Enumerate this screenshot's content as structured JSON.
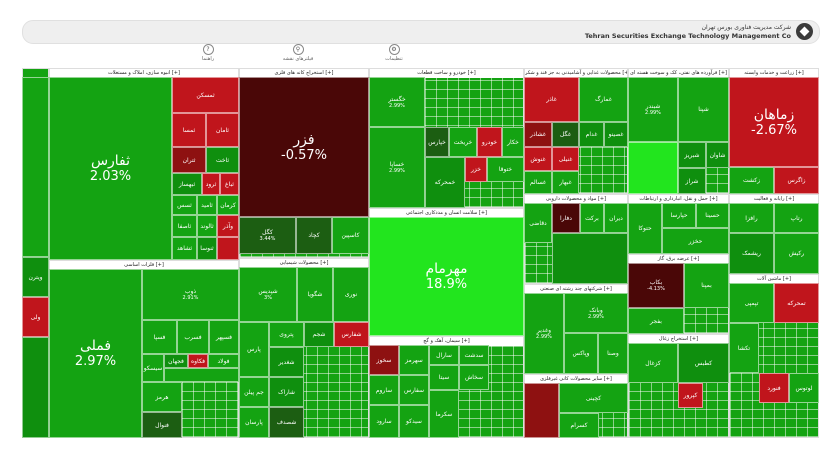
{
  "header": {
    "brand_fa": "شرکت مدیریت فناوری بورس تهران",
    "brand_en": "Tehran Securities Exchange Technology Management Co",
    "tools": [
      {
        "label": "راهنما",
        "icon": "help-icon",
        "glyph": "?"
      },
      {
        "label": "فیلترهای نقشه",
        "icon": "filter-icon",
        "glyph": "⚲"
      },
      {
        "label": "تنظیمات",
        "icon": "gear-icon",
        "glyph": "⚙"
      }
    ]
  },
  "colors": {
    "g_bright": "#22e51e",
    "g": "#14a312",
    "g_mid": "#0f8f0e",
    "g_dark": "#1c5e12",
    "r": "#c0151c",
    "r_dark": "#4a0707",
    "r_mid": "#8e1111"
  },
  "sectors": [
    {
      "name": "",
      "l": 0,
      "t": 0,
      "w": 27,
      "h": 370
    },
    {
      "name": "انبوه سازی، املاک و مستغلات [+]",
      "l": 27,
      "t": 0,
      "w": 190,
      "h": 192
    },
    {
      "name": "فلزات اساسی [+]",
      "l": 27,
      "t": 192,
      "w": 190,
      "h": 178
    },
    {
      "name": "استخراج کانه های فلزی [+]",
      "l": 217,
      "t": 0,
      "w": 130,
      "h": 190
    },
    {
      "name": "محصولات شیمیایی [+]",
      "l": 217,
      "t": 190,
      "w": 130,
      "h": 180
    },
    {
      "name": "خودرو و ساخت قطعات [+]",
      "l": 347,
      "t": 0,
      "w": 155,
      "h": 140
    },
    {
      "name": "سلامت انسان و مددکاری اجتماعی [+]",
      "l": 347,
      "t": 140,
      "w": 155,
      "h": 128
    },
    {
      "name": "سیمان، آهک و گچ [+]",
      "l": 347,
      "t": 268,
      "w": 155,
      "h": 102
    },
    {
      "name": "محصولات غذایی و آشامیدنی به جز قند و شکر [+]",
      "l": 502,
      "t": 0,
      "w": 104,
      "h": 126
    },
    {
      "name": "مواد و محصولات دارویی [+]",
      "l": 502,
      "t": 126,
      "w": 104,
      "h": 90
    },
    {
      "name": "شرکتهای چند رشته ای صنعتی [+]",
      "l": 502,
      "t": 216,
      "w": 104,
      "h": 90
    },
    {
      "name": "سایر محصولات کانی غیرفلزی [+]",
      "l": 502,
      "t": 306,
      "w": 104,
      "h": 64
    },
    {
      "name": "فرآورده های نفتی، کک و سوخت هسته ای [+]",
      "l": 606,
      "t": 0,
      "w": 101,
      "h": 126
    },
    {
      "name": "حمل و نقل، انبارداری و ارتباطات [+]",
      "l": 606,
      "t": 126,
      "w": 101,
      "h": 60
    },
    {
      "name": "عرضه برق، گاز [+]",
      "l": 606,
      "t": 186,
      "w": 101,
      "h": 80
    },
    {
      "name": "استخراج زغال [+]",
      "l": 606,
      "t": 266,
      "w": 101,
      "h": 104
    },
    {
      "name": "زراعت و خدمات وابسته [+]",
      "l": 707,
      "t": 0,
      "w": 90,
      "h": 126
    },
    {
      "name": "رایانه و فعالیت [+]",
      "l": 707,
      "t": 126,
      "w": 90,
      "h": 80
    },
    {
      "name": "ماشین آلات [+]",
      "l": 707,
      "t": 206,
      "w": 90,
      "h": 164
    }
  ],
  "tiles": [
    {
      "nm": "",
      "pc": "",
      "c": "g",
      "l": 0,
      "t": 9,
      "w": 27,
      "h": 180
    },
    {
      "nm": "ویترن",
      "pc": "",
      "c": "g_mid",
      "l": 0,
      "t": 189,
      "w": 27,
      "h": 40
    },
    {
      "nm": "ولی",
      "pc": "",
      "c": "r",
      "l": 0,
      "t": 229,
      "w": 27,
      "h": 40
    },
    {
      "nm": "",
      "pc": "",
      "c": "g_mid",
      "l": 0,
      "t": 269,
      "w": 27,
      "h": 101
    },
    {
      "nm": "ثفارس",
      "pc": "2.03%",
      "c": "g",
      "l": 27,
      "t": 9,
      "w": 123,
      "h": 183,
      "big": true
    },
    {
      "nm": "ثمسکن",
      "pc": "",
      "c": "r",
      "l": 150,
      "t": 9,
      "w": 67,
      "h": 36
    },
    {
      "nm": "ثمسا",
      "pc": "",
      "c": "r",
      "l": 150,
      "t": 45,
      "w": 34,
      "h": 34
    },
    {
      "nm": "ثامان",
      "pc": "",
      "c": "r",
      "l": 184,
      "t": 45,
      "w": 33,
      "h": 34
    },
    {
      "nm": "ثتران",
      "pc": "",
      "c": "r_mid",
      "l": 150,
      "t": 79,
      "w": 34,
      "h": 26
    },
    {
      "nm": "ثاخت",
      "pc": "",
      "c": "g_mid",
      "l": 184,
      "t": 79,
      "w": 33,
      "h": 26
    },
    {
      "nm": "ثبهساز",
      "pc": "",
      "c": "g_mid",
      "l": 150,
      "t": 105,
      "w": 30,
      "h": 22
    },
    {
      "nm": "ثرود",
      "pc": "",
      "c": "r",
      "l": 180,
      "t": 105,
      "w": 18,
      "h": 22
    },
    {
      "nm": "ثباغ",
      "pc": "",
      "c": "r",
      "l": 198,
      "t": 105,
      "w": 19,
      "h": 22
    },
    {
      "nm": "ثسس",
      "pc": "",
      "c": "g",
      "l": 150,
      "t": 127,
      "w": 25,
      "h": 20
    },
    {
      "nm": "ثامید",
      "pc": "",
      "c": "g",
      "l": 175,
      "t": 127,
      "w": 20,
      "h": 20
    },
    {
      "nm": "کرمان",
      "pc": "",
      "c": "g",
      "l": 195,
      "t": 127,
      "w": 22,
      "h": 20
    },
    {
      "nm": "ثاصفا",
      "pc": "",
      "c": "g",
      "l": 150,
      "t": 147,
      "w": 25,
      "h": 22
    },
    {
      "nm": "ثالوند",
      "pc": "",
      "c": "g",
      "l": 175,
      "t": 147,
      "w": 20,
      "h": 22
    },
    {
      "nm": "وآذر",
      "pc": "",
      "c": "r",
      "l": 195,
      "t": 147,
      "w": 22,
      "h": 22
    },
    {
      "nm": "ثشاهد",
      "pc": "",
      "c": "g",
      "l": 150,
      "t": 169,
      "w": 25,
      "h": 23
    },
    {
      "nm": "ثنوسا",
      "pc": "",
      "c": "g_mid",
      "l": 175,
      "t": 169,
      "w": 20,
      "h": 23
    },
    {
      "nm": "",
      "pc": "",
      "c": "r",
      "l": 195,
      "t": 169,
      "w": 22,
      "h": 23
    },
    {
      "nm": "فملی",
      "pc": "2.97%",
      "c": "g",
      "l": 27,
      "t": 201,
      "w": 93,
      "h": 169,
      "big": true
    },
    {
      "nm": "ذوب",
      "pc": "2.91%",
      "c": "g",
      "l": 120,
      "t": 201,
      "w": 97,
      "h": 51
    },
    {
      "nm": "فسپا",
      "pc": "",
      "c": "g",
      "l": 120,
      "t": 252,
      "w": 35,
      "h": 34
    },
    {
      "nm": "فسرب",
      "pc": "",
      "c": "g",
      "l": 155,
      "t": 252,
      "w": 32,
      "h": 34
    },
    {
      "nm": "فسپهر",
      "pc": "",
      "c": "g",
      "l": 187,
      "t": 252,
      "w": 30,
      "h": 34
    },
    {
      "nm": "سیسکو",
      "pc": "",
      "c": "g",
      "l": 120,
      "t": 286,
      "w": 22,
      "h": 28
    },
    {
      "nm": "فجهان",
      "pc": "",
      "c": "g_mid",
      "l": 142,
      "t": 286,
      "w": 24,
      "h": 14
    },
    {
      "nm": "فکاوه",
      "pc": "",
      "c": "r",
      "l": 166,
      "t": 286,
      "w": 20,
      "h": 14
    },
    {
      "nm": "فولاد",
      "pc": "",
      "c": "g",
      "l": 186,
      "t": 286,
      "w": 31,
      "h": 14
    },
    {
      "nm": "",
      "pc": "",
      "c": "g",
      "l": 142,
      "t": 300,
      "w": 75,
      "h": 14
    },
    {
      "nm": "هرمز",
      "pc": "",
      "c": "g",
      "l": 120,
      "t": 314,
      "w": 40,
      "h": 30
    },
    {
      "nm": "فنوال",
      "pc": "",
      "c": "g_dark",
      "l": 120,
      "t": 344,
      "w": 40,
      "h": 26
    },
    {
      "nm": "فزر",
      "pc": "-0.57%",
      "c": "r_dark",
      "l": 217,
      "t": 9,
      "w": 130,
      "h": 140,
      "big": true
    },
    {
      "nm": "کگل",
      "pc": "3.44%",
      "c": "g_dark",
      "l": 217,
      "t": 149,
      "w": 57,
      "h": 37
    },
    {
      "nm": "کچاد",
      "pc": "",
      "c": "g_dark",
      "l": 274,
      "t": 149,
      "w": 36,
      "h": 37
    },
    {
      "nm": "کاسپین",
      "pc": "",
      "c": "g",
      "l": 310,
      "t": 149,
      "w": 37,
      "h": 37
    },
    {
      "nm": "شپدیس",
      "pc": "3%",
      "c": "g",
      "l": 217,
      "t": 199,
      "w": 58,
      "h": 55
    },
    {
      "nm": "شگویا",
      "pc": "",
      "c": "g",
      "l": 275,
      "t": 199,
      "w": 36,
      "h": 55
    },
    {
      "nm": "نوری",
      "pc": "",
      "c": "g",
      "l": 311,
      "t": 199,
      "w": 36,
      "h": 55
    },
    {
      "nm": "پارس",
      "pc": "",
      "c": "g",
      "l": 217,
      "t": 254,
      "w": 30,
      "h": 55
    },
    {
      "nm": "پتروی",
      "pc": "",
      "c": "g",
      "l": 247,
      "t": 254,
      "w": 35,
      "h": 25
    },
    {
      "nm": "شجم",
      "pc": "",
      "c": "g_mid",
      "l": 282,
      "t": 254,
      "w": 30,
      "h": 25
    },
    {
      "nm": "شفارس",
      "pc": "",
      "c": "r",
      "l": 312,
      "t": 254,
      "w": 35,
      "h": 25
    },
    {
      "nm": "جم پیلن",
      "pc": "",
      "c": "g",
      "l": 217,
      "t": 309,
      "w": 30,
      "h": 30
    },
    {
      "nm": "شاراک",
      "pc": "",
      "c": "g_mid",
      "l": 247,
      "t": 309,
      "w": 35,
      "h": 30
    },
    {
      "nm": "شغدیر",
      "pc": "",
      "c": "g_mid",
      "l": 247,
      "t": 279,
      "w": 35,
      "h": 30
    },
    {
      "nm": "پارسان",
      "pc": "",
      "c": "g",
      "l": 217,
      "t": 339,
      "w": 30,
      "h": 31
    },
    {
      "nm": "شصدف",
      "pc": "",
      "c": "g_dark",
      "l": 247,
      "t": 339,
      "w": 35,
      "h": 31
    },
    {
      "nm": "خگستر",
      "pc": "2.99%",
      "c": "g",
      "l": 347,
      "t": 9,
      "w": 56,
      "h": 50
    },
    {
      "nm": "خساپا",
      "pc": "2.99%",
      "c": "g",
      "l": 347,
      "t": 59,
      "w": 56,
      "h": 81
    },
    {
      "nm": "خپارس",
      "pc": "",
      "c": "g_dark",
      "l": 403,
      "t": 59,
      "w": 24,
      "h": 30
    },
    {
      "nm": "خریخت",
      "pc": "",
      "c": "g",
      "l": 427,
      "t": 59,
      "w": 28,
      "h": 30
    },
    {
      "nm": "خودرو",
      "pc": "",
      "c": "r",
      "l": 455,
      "t": 59,
      "w": 25,
      "h": 30
    },
    {
      "nm": "خکار",
      "pc": "",
      "c": "g",
      "l": 480,
      "t": 59,
      "w": 22,
      "h": 30
    },
    {
      "nm": "خمحرکه",
      "pc": "",
      "c": "g_mid",
      "l": 403,
      "t": 89,
      "w": 40,
      "h": 51
    },
    {
      "nm": "خزر",
      "pc": "",
      "c": "r",
      "l": 443,
      "t": 89,
      "w": 22,
      "h": 25
    },
    {
      "nm": "ختوقا",
      "pc": "",
      "c": "g",
      "l": 465,
      "t": 89,
      "w": 37,
      "h": 25
    },
    {
      "nm": "مهرمام",
      "pc": "18.9%",
      "c": "g_bright",
      "l": 347,
      "t": 149,
      "w": 155,
      "h": 119,
      "big": true
    },
    {
      "nm": "سخوز",
      "pc": "",
      "c": "r_mid",
      "l": 347,
      "t": 277,
      "w": 30,
      "h": 30
    },
    {
      "nm": "سهرمز",
      "pc": "",
      "c": "g",
      "l": 377,
      "t": 277,
      "w": 30,
      "h": 30
    },
    {
      "nm": "سارال",
      "pc": "",
      "c": "g",
      "l": 407,
      "t": 277,
      "w": 30,
      "h": 20
    },
    {
      "nm": "سدشت",
      "pc": "",
      "c": "g",
      "l": 437,
      "t": 277,
      "w": 30,
      "h": 20
    },
    {
      "nm": "ساروم",
      "pc": "",
      "c": "g",
      "l": 347,
      "t": 307,
      "w": 30,
      "h": 30
    },
    {
      "nm": "سفارس",
      "pc": "",
      "c": "g",
      "l": 377,
      "t": 307,
      "w": 30,
      "h": 30
    },
    {
      "nm": "سیتا",
      "pc": "",
      "c": "g",
      "l": 407,
      "t": 297,
      "w": 30,
      "h": 25
    },
    {
      "nm": "سخاش",
      "pc": "",
      "c": "g",
      "l": 437,
      "t": 297,
      "w": 30,
      "h": 25
    },
    {
      "nm": "سارود",
      "pc": "",
      "c": "g",
      "l": 347,
      "t": 337,
      "w": 30,
      "h": 33
    },
    {
      "nm": "سیدکو",
      "pc": "",
      "c": "g",
      "l": 377,
      "t": 337,
      "w": 30,
      "h": 33
    },
    {
      "nm": "سکرما",
      "pc": "",
      "c": "g",
      "l": 407,
      "t": 322,
      "w": 30,
      "h": 48
    },
    {
      "nm": "غاذر",
      "pc": "",
      "c": "r",
      "l": 502,
      "t": 9,
      "w": 55,
      "h": 45
    },
    {
      "nm": "غمارگ",
      "pc": "",
      "c": "g",
      "l": 557,
      "t": 9,
      "w": 49,
      "h": 45
    },
    {
      "nm": "غشاذر",
      "pc": "",
      "c": "r_mid",
      "l": 502,
      "t": 54,
      "w": 28,
      "h": 25
    },
    {
      "nm": "غگل",
      "pc": "",
      "c": "g_dark",
      "l": 530,
      "t": 54,
      "w": 27,
      "h": 25
    },
    {
      "nm": "غدام",
      "pc": "",
      "c": "g_mid",
      "l": 557,
      "t": 54,
      "w": 25,
      "h": 25
    },
    {
      "nm": "غصینو",
      "pc": "",
      "c": "g_mid",
      "l": 582,
      "t": 54,
      "w": 24,
      "h": 25
    },
    {
      "nm": "غنوش",
      "pc": "",
      "c": "r",
      "l": 502,
      "t": 79,
      "w": 28,
      "h": 24
    },
    {
      "nm": "غنیلی",
      "pc": "",
      "c": "r",
      "l": 530,
      "t": 79,
      "w": 27,
      "h": 24
    },
    {
      "nm": "غسالم",
      "pc": "",
      "c": "g",
      "l": 502,
      "t": 103,
      "w": 28,
      "h": 23
    },
    {
      "nm": "غبهار",
      "pc": "",
      "c": "g",
      "l": 530,
      "t": 103,
      "w": 27,
      "h": 23
    },
    {
      "nm": "دقاضی",
      "pc": "",
      "c": "g",
      "l": 502,
      "t": 135,
      "w": 28,
      "h": 40
    },
    {
      "nm": "دفارا",
      "pc": "",
      "c": "r_dark",
      "l": 530,
      "t": 135,
      "w": 28,
      "h": 30
    },
    {
      "nm": "برکت",
      "pc": "",
      "c": "g",
      "l": 558,
      "t": 135,
      "w": 24,
      "h": 30
    },
    {
      "nm": "دیران",
      "pc": "",
      "c": "g",
      "l": 582,
      "t": 135,
      "w": 24,
      "h": 30
    },
    {
      "nm": "",
      "pc": "",
      "c": "g_mid",
      "l": 530,
      "t": 165,
      "w": 76,
      "h": 51
    },
    {
      "nm": "وغدیر",
      "pc": "2.99%",
      "c": "g",
      "l": 502,
      "t": 225,
      "w": 40,
      "h": 81
    },
    {
      "nm": "وبانک",
      "pc": "2.99%",
      "c": "g",
      "l": 542,
      "t": 225,
      "w": 64,
      "h": 40
    },
    {
      "nm": "وپاکس",
      "pc": "",
      "c": "g",
      "l": 542,
      "t": 265,
      "w": 34,
      "h": 41
    },
    {
      "nm": "وصنا",
      "pc": "",
      "c": "g",
      "l": 576,
      "t": 265,
      "w": 30,
      "h": 41
    },
    {
      "nm": "کچینی",
      "pc": "",
      "c": "g",
      "l": 537,
      "t": 315,
      "w": 69,
      "h": 30
    },
    {
      "nm": "",
      "pc": "",
      "c": "r_mid",
      "l": 502,
      "t": 315,
      "w": 35,
      "h": 55
    },
    {
      "nm": "کسرام",
      "pc": "",
      "c": "g",
      "l": 537,
      "t": 345,
      "w": 40,
      "h": 25
    },
    {
      "nm": "شبندر",
      "pc": "2.99%",
      "c": "g",
      "l": 606,
      "t": 9,
      "w": 50,
      "h": 65
    },
    {
      "nm": "شپنا",
      "pc": "",
      "c": "g",
      "l": 656,
      "t": 9,
      "w": 51,
      "h": 65
    },
    {
      "nm": "",
      "pc": "",
      "c": "g_bright",
      "l": 606,
      "t": 74,
      "w": 50,
      "h": 52
    },
    {
      "nm": "شبریز",
      "pc": "",
      "c": "g_mid",
      "l": 656,
      "t": 74,
      "w": 28,
      "h": 26
    },
    {
      "nm": "شاوان",
      "pc": "",
      "c": "g_mid",
      "l": 684,
      "t": 74,
      "w": 23,
      "h": 26
    },
    {
      "nm": "شراز",
      "pc": "",
      "c": "g_mid",
      "l": 656,
      "t": 100,
      "w": 28,
      "h": 26
    },
    {
      "nm": "حتوکا",
      "pc": "",
      "c": "g",
      "l": 606,
      "t": 135,
      "w": 34,
      "h": 51
    },
    {
      "nm": "حپارسا",
      "pc": "",
      "c": "g",
      "l": 640,
      "t": 135,
      "w": 34,
      "h": 25
    },
    {
      "nm": "حسینا",
      "pc": "",
      "c": "g",
      "l": 674,
      "t": 135,
      "w": 33,
      "h": 25
    },
    {
      "nm": "حخزر",
      "pc": "",
      "c": "g",
      "l": 640,
      "t": 160,
      "w": 67,
      "h": 26
    },
    {
      "nm": "بکاب",
      "pc": "-4.13%",
      "c": "r_dark",
      "l": 606,
      "t": 195,
      "w": 56,
      "h": 45
    },
    {
      "nm": "بمپنا",
      "pc": "",
      "c": "g",
      "l": 662,
      "t": 195,
      "w": 45,
      "h": 45
    },
    {
      "nm": "بفجر",
      "pc": "",
      "c": "g",
      "l": 606,
      "t": 240,
      "w": 56,
      "h": 26
    },
    {
      "nm": "کزغال",
      "pc": "",
      "c": "g",
      "l": 606,
      "t": 275,
      "w": 50,
      "h": 40
    },
    {
      "nm": "کطبس",
      "pc": "",
      "c": "g_mid",
      "l": 656,
      "t": 275,
      "w": 51,
      "h": 40
    },
    {
      "nm": "کپرور",
      "pc": "",
      "c": "r",
      "l": 656,
      "t": 315,
      "w": 25,
      "h": 25
    },
    {
      "nm": "زماهان",
      "pc": "-2.67%",
      "c": "r",
      "l": 707,
      "t": 9,
      "w": 90,
      "h": 90,
      "big": true
    },
    {
      "nm": "زکشت",
      "pc": "",
      "c": "g",
      "l": 707,
      "t": 99,
      "w": 45,
      "h": 27
    },
    {
      "nm": "زاگرس",
      "pc": "",
      "c": "r",
      "l": 752,
      "t": 99,
      "w": 45,
      "h": 27
    },
    {
      "nm": "رافزا",
      "pc": "",
      "c": "g",
      "l": 707,
      "t": 135,
      "w": 45,
      "h": 30
    },
    {
      "nm": "رتاپ",
      "pc": "",
      "c": "g",
      "l": 752,
      "t": 135,
      "w": 45,
      "h": 30
    },
    {
      "nm": "ریشمک",
      "pc": "",
      "c": "g_mid",
      "l": 707,
      "t": 165,
      "w": 45,
      "h": 41
    },
    {
      "nm": "رکیش",
      "pc": "",
      "c": "g",
      "l": 752,
      "t": 165,
      "w": 45,
      "h": 41
    },
    {
      "nm": "تپمپی",
      "pc": "",
      "c": "g",
      "l": 707,
      "t": 215,
      "w": 45,
      "h": 40
    },
    {
      "nm": "تمحرکه",
      "pc": "",
      "c": "r",
      "l": 752,
      "t": 215,
      "w": 45,
      "h": 40
    },
    {
      "nm": "تکشا",
      "pc": "",
      "c": "g",
      "l": 707,
      "t": 255,
      "w": 30,
      "h": 50
    },
    {
      "nm": "فنورد",
      "pc": "",
      "c": "r",
      "l": 737,
      "t": 305,
      "w": 30,
      "h": 30
    },
    {
      "nm": "لوتوس",
      "pc": "",
      "c": "g",
      "l": 767,
      "t": 305,
      "w": 30,
      "h": 30
    }
  ]
}
